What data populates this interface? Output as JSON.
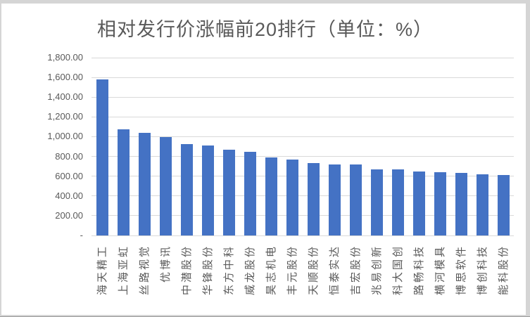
{
  "frame": {
    "background": "#ffffff",
    "edge_color": "#d5d5d5"
  },
  "chart_data": {
    "type": "bar",
    "title": "相对发行价涨幅前20排行（单位：%）",
    "unit": "%",
    "categories": [
      "海天精工",
      "上海亚虹",
      "丝路视觉",
      "优博讯",
      "中潜股份",
      "华锋股份",
      "东方中科",
      "威龙股份",
      "昊志机电",
      "丰元股份",
      "天顺股份",
      "恒泰实达",
      "吉宏股份",
      "兆易创新",
      "科大国创",
      "路畅科技",
      "横河模具",
      "博思软件",
      "博创科技",
      "能科股份"
    ],
    "values": [
      1581,
      1073,
      1036,
      995,
      925,
      912,
      869,
      848,
      792,
      766,
      736,
      722,
      719,
      668,
      666,
      648,
      640,
      633,
      622,
      615
    ],
    "xlabel": "",
    "ylabel": "",
    "ylim": [
      0,
      1800
    ],
    "ytick_step": 200,
    "ytick_labels": [
      "1,800.00",
      "1,600.00",
      "1,400.00",
      "1,200.00",
      "1,000.00",
      "800.00",
      "600.00",
      "400.00",
      "200.00",
      "-"
    ],
    "grid": true,
    "legend_position": "none",
    "bar_color": "#4472c4",
    "gridline_color": "#d9d9d9",
    "text_color": "#595959"
  }
}
